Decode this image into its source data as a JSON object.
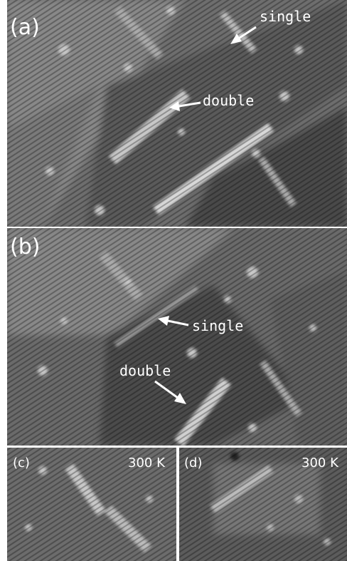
{
  "panels": [
    {
      "label": "(a)",
      "annotations": [
        "single",
        "double"
      ]
    },
    {
      "label": "(b)",
      "annotations": [
        "single",
        "double"
      ]
    },
    {
      "label": "(c)",
      "temperature": "300 K"
    },
    {
      "label": "(d)",
      "temperature": "300 K"
    }
  ]
}
